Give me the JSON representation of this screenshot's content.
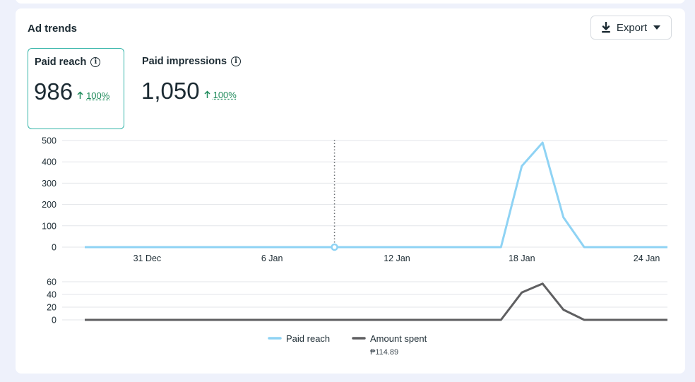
{
  "card": {
    "title": "Ad trends",
    "export_label": "Export"
  },
  "metrics": [
    {
      "label": "Paid reach",
      "value": "986",
      "delta": "100%",
      "selected": true
    },
    {
      "label": "Paid impressions",
      "value": "1,050",
      "delta": "100%",
      "selected": false
    }
  ],
  "colors": {
    "paid_reach": "#8fd3f4",
    "amount_spent": "#5f5f61",
    "selected_border": "#35b5a9",
    "delta": "#1e8a5a"
  },
  "chart_data": [
    {
      "type": "line",
      "x": [
        "28 Dec",
        "29 Dec",
        "30 Dec",
        "31 Dec",
        "1 Jan",
        "2 Jan",
        "3 Jan",
        "4 Jan",
        "5 Jan",
        "6 Jan",
        "7 Jan",
        "8 Jan",
        "9 Jan",
        "10 Jan",
        "11 Jan",
        "12 Jan",
        "13 Jan",
        "14 Jan",
        "15 Jan",
        "16 Jan",
        "17 Jan",
        "18 Jan",
        "19 Jan",
        "20 Jan",
        "21 Jan",
        "22 Jan",
        "23 Jan",
        "24 Jan",
        "25 Jan"
      ],
      "x_tick_labels": [
        "31 Dec",
        "6 Jan",
        "12 Jan",
        "18 Jan",
        "24 Jan"
      ],
      "series": [
        {
          "name": "Paid reach",
          "values": [
            0,
            0,
            0,
            0,
            0,
            0,
            0,
            0,
            0,
            0,
            0,
            0,
            0,
            0,
            0,
            0,
            0,
            0,
            0,
            0,
            0,
            380,
            490,
            140,
            0,
            0,
            0,
            0,
            0
          ]
        }
      ],
      "ylim": [
        0,
        500
      ],
      "y_ticks": [
        0,
        100,
        200,
        300,
        400,
        500
      ],
      "grid": true,
      "hover_marker_x": "9 Jan"
    },
    {
      "type": "line",
      "x": [
        "28 Dec",
        "29 Dec",
        "30 Dec",
        "31 Dec",
        "1 Jan",
        "2 Jan",
        "3 Jan",
        "4 Jan",
        "5 Jan",
        "6 Jan",
        "7 Jan",
        "8 Jan",
        "9 Jan",
        "10 Jan",
        "11 Jan",
        "12 Jan",
        "13 Jan",
        "14 Jan",
        "15 Jan",
        "16 Jan",
        "17 Jan",
        "18 Jan",
        "19 Jan",
        "20 Jan",
        "21 Jan",
        "22 Jan",
        "23 Jan",
        "24 Jan",
        "25 Jan"
      ],
      "series": [
        {
          "name": "Amount spent",
          "values": [
            0,
            0,
            0,
            0,
            0,
            0,
            0,
            0,
            0,
            0,
            0,
            0,
            0,
            0,
            0,
            0,
            0,
            0,
            0,
            0,
            0,
            43,
            57,
            16,
            0,
            0,
            0,
            0,
            0
          ]
        }
      ],
      "ylim": [
        0,
        60
      ],
      "y_ticks": [
        0,
        20,
        40,
        60
      ],
      "grid": true
    }
  ],
  "legend": [
    {
      "label": "Paid reach",
      "sub": ""
    },
    {
      "label": "Amount spent",
      "sub": "₱114.89"
    }
  ]
}
